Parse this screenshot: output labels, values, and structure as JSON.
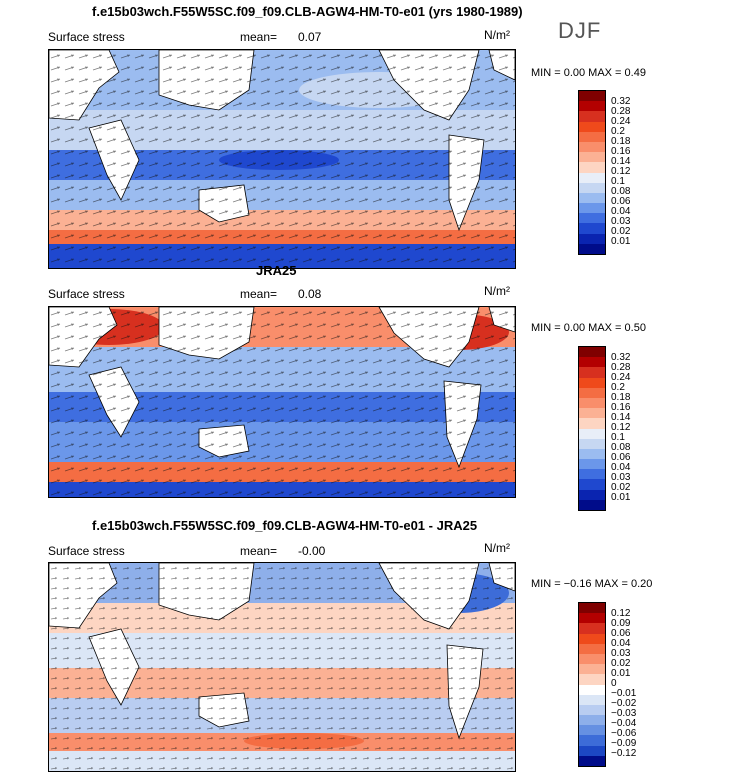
{
  "panels": [
    {
      "title": "f.e15b03wch.F55W5SC.f09_f09.CLB-AGW4-HM-T0-e01 (yrs 1980-1989)",
      "variable": "Surface stress",
      "mean_label": "mean=",
      "mean": "0.07",
      "units": "N/m²",
      "min_max": "MIN =   0.00  MAX =   0.49",
      "colorbar_labels": [
        "0.32",
        "0.28",
        "0.24",
        "0.2",
        "0.18",
        "0.16",
        "0.14",
        "0.12",
        "0.1",
        "0.08",
        "0.06",
        "0.04",
        "0.03",
        "0.02",
        "0.01"
      ]
    },
    {
      "title": "JRA25",
      "variable": "Surface stress",
      "mean_label": "mean=",
      "mean": "0.08",
      "units": "N/m²",
      "min_max": "MIN =   0.00  MAX =   0.50",
      "colorbar_labels": [
        "0.32",
        "0.28",
        "0.24",
        "0.2",
        "0.18",
        "0.16",
        "0.14",
        "0.12",
        "0.1",
        "0.08",
        "0.06",
        "0.04",
        "0.03",
        "0.02",
        "0.01"
      ]
    },
    {
      "title": "f.e15b03wch.F55W5SC.f09_f09.CLB-AGW4-HM-T0-e01 - JRA25",
      "variable": "Surface stress",
      "mean_label": "mean=",
      "mean": "-0.00",
      "units": "N/m²",
      "min_max": "MIN =  −0.16  MAX =   0.20",
      "colorbar_labels": [
        "0.12",
        "0.09",
        "0.06",
        "0.04",
        "0.03",
        "0.02",
        "0.01",
        "0",
        "−0.01",
        "−0.02",
        "−0.03",
        "−0.04",
        "−0.06",
        "−0.09",
        "−0.12"
      ]
    }
  ],
  "season": "DJF",
  "colors": {
    "abs_scale": [
      "#7f0000",
      "#b30000",
      "#d7301f",
      "#ef4a1b",
      "#f46d43",
      "#f98e6b",
      "#fbb194",
      "#fdd5c2",
      "#e8eef8",
      "#c6d7f2",
      "#9bbcf0",
      "#6b97ea",
      "#3f6ee0",
      "#1f48cf",
      "#0a24b0",
      "#000c8a"
    ],
    "diff_scale": [
      "#7f0000",
      "#b30000",
      "#d7301f",
      "#ef4a1b",
      "#f46d43",
      "#f98e6b",
      "#fbb194",
      "#fdd5c2",
      "#ffffff",
      "#dbe6f6",
      "#b9cdf1",
      "#8eafea",
      "#6690e2",
      "#3d6cd8",
      "#1c47c4",
      "#000c8a"
    ]
  }
}
